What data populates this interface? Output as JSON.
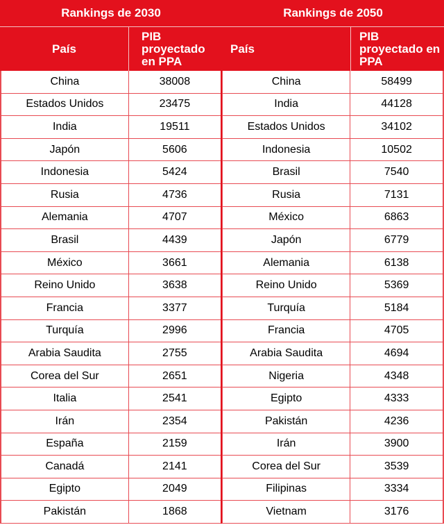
{
  "chart_data": {
    "type": "table",
    "tables": [
      {
        "title": "Rankings de 2030",
        "columns": [
          "País",
          "PIB\nproyectado\nen PPA"
        ],
        "rows": [
          [
            "China",
            "38008"
          ],
          [
            "Estados Unidos",
            "23475"
          ],
          [
            "India",
            "19511"
          ],
          [
            "Japón",
            "5606"
          ],
          [
            "Indonesia",
            "5424"
          ],
          [
            "Rusia",
            "4736"
          ],
          [
            "Alemania",
            "4707"
          ],
          [
            "Brasil",
            "4439"
          ],
          [
            "México",
            "3661"
          ],
          [
            "Reino Unido",
            "3638"
          ],
          [
            "Francia",
            "3377"
          ],
          [
            "Turquía",
            "2996"
          ],
          [
            "Arabia Saudita",
            "2755"
          ],
          [
            "Corea del Sur",
            "2651"
          ],
          [
            "Italia",
            "2541"
          ],
          [
            "Irán",
            "2354"
          ],
          [
            "España",
            "2159"
          ],
          [
            "Canadá",
            "2141"
          ],
          [
            "Egipto",
            "2049"
          ],
          [
            "Pakistán",
            "1868"
          ]
        ]
      },
      {
        "title": "Rankings de 2050",
        "columns": [
          "País",
          "PIB\nproyectado en\nPPA"
        ],
        "rows": [
          [
            "China",
            "58499"
          ],
          [
            "India",
            "44128"
          ],
          [
            "Estados Unidos",
            "34102"
          ],
          [
            "Indonesia",
            "10502"
          ],
          [
            "Brasil",
            "7540"
          ],
          [
            "Rusia",
            "7131"
          ],
          [
            "México",
            "6863"
          ],
          [
            "Japón",
            "6779"
          ],
          [
            "Alemania",
            "6138"
          ],
          [
            "Reino Unido",
            "5369"
          ],
          [
            "Turquía",
            "5184"
          ],
          [
            "Francia",
            "4705"
          ],
          [
            "Arabia Saudita",
            "4694"
          ],
          [
            "Nigeria",
            "4348"
          ],
          [
            "Egipto",
            "4333"
          ],
          [
            "Pakistán",
            "4236"
          ],
          [
            "Irán",
            "3900"
          ],
          [
            "Corea del Sur",
            "3539"
          ],
          [
            "Filipinas",
            "3334"
          ],
          [
            "Vietnam",
            "3176"
          ]
        ]
      }
    ]
  },
  "colors": {
    "header_red": "#e3111d",
    "grid_red": "#e84a52",
    "header_text": "#ffffff",
    "body_text": "#000000"
  }
}
